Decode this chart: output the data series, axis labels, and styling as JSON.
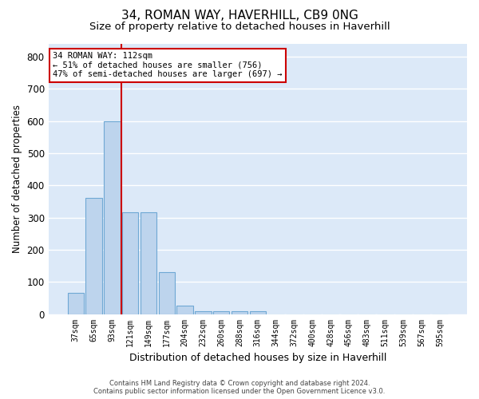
{
  "title": "34, ROMAN WAY, HAVERHILL, CB9 0NG",
  "subtitle": "Size of property relative to detached houses in Haverhill",
  "xlabel": "Distribution of detached houses by size in Haverhill",
  "ylabel": "Number of detached properties",
  "bar_labels": [
    "37sqm",
    "65sqm",
    "93sqm",
    "121sqm",
    "149sqm",
    "177sqm",
    "204sqm",
    "232sqm",
    "260sqm",
    "288sqm",
    "316sqm",
    "344sqm",
    "372sqm",
    "400sqm",
    "428sqm",
    "456sqm",
    "483sqm",
    "511sqm",
    "539sqm",
    "567sqm",
    "595sqm"
  ],
  "bar_values": [
    65,
    360,
    600,
    317,
    317,
    130,
    25,
    10,
    8,
    8,
    10,
    0,
    0,
    0,
    0,
    0,
    0,
    0,
    0,
    0,
    0
  ],
  "bar_color": "#bdd4ed",
  "bar_edge_color": "#6fa8d4",
  "vline_color": "#cc0000",
  "annotation_text": "34 ROMAN WAY: 112sqm\n← 51% of detached houses are smaller (756)\n47% of semi-detached houses are larger (697) →",
  "annotation_box_color": "#cc0000",
  "ylim": [
    0,
    840
  ],
  "yticks": [
    0,
    100,
    200,
    300,
    400,
    500,
    600,
    700,
    800
  ],
  "background_color": "#dce9f8",
  "grid_color": "#ffffff",
  "footer_line1": "Contains HM Land Registry data © Crown copyright and database right 2024.",
  "footer_line2": "Contains public sector information licensed under the Open Government Licence v3.0.",
  "title_fontsize": 11,
  "subtitle_fontsize": 9.5
}
